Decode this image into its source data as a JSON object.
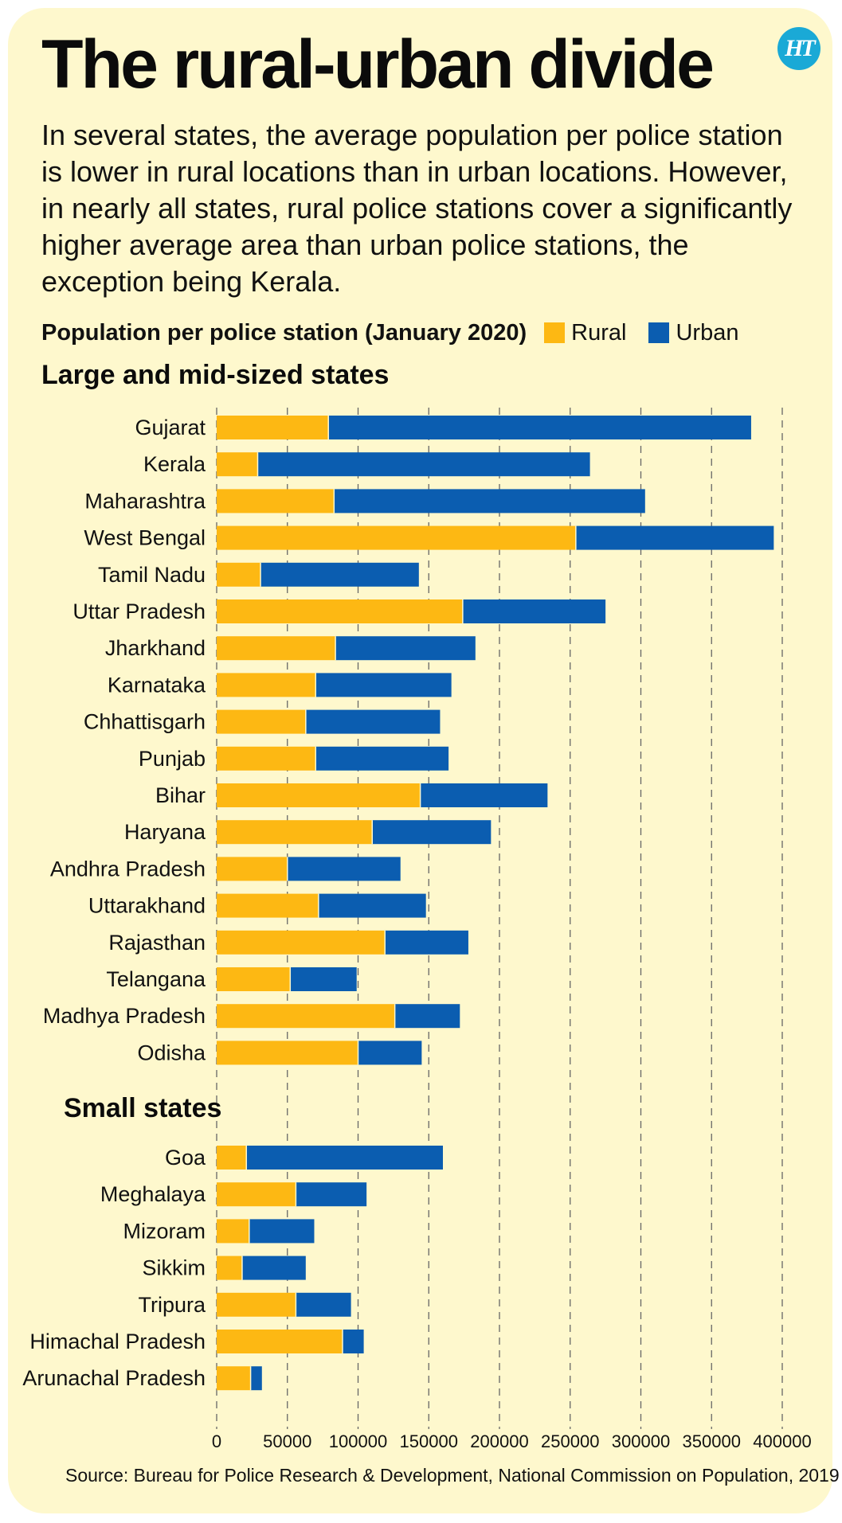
{
  "title": "The rural-urban divide",
  "logo_text": "HT",
  "intro": "In several states, the average population per police station is lower in rural locations than in urban locations. However, in nearly all states, rural police stations cover a significantly higher average area than urban police stations, the exception being Kerala.",
  "legend": {
    "title": "Population per police station (January 2020)",
    "rural": "Rural",
    "urban": "Urban"
  },
  "colors": {
    "rural": "#fdb813",
    "urban": "#0b5db0",
    "gridline": "#666666",
    "background": "#fef8cd"
  },
  "source": "Source: Bureau for Police Research & Development, National Commission on Population, 2019",
  "chart_data": {
    "type": "bar",
    "orientation": "horizontal",
    "stacked": true,
    "xlim": [
      0,
      400000
    ],
    "xticks": [
      0,
      50000,
      100000,
      150000,
      200000,
      250000,
      300000,
      350000,
      400000
    ],
    "legend_position": "top",
    "grid": "vertical dashed",
    "groups": [
      {
        "name": "Large and mid-sized states",
        "categories": [
          "Gujarat",
          "Kerala",
          "Maharashtra",
          "West Bengal",
          "Tamil Nadu",
          "Uttar Pradesh",
          "Jharkhand",
          "Karnataka",
          "Chhattisgarh",
          "Punjab",
          "Bihar",
          "Haryana",
          "Andhra Pradesh",
          "Uttarakhand",
          "Rajasthan",
          "Telangana",
          "Madhya Pradesh",
          "Odisha"
        ],
        "series": [
          {
            "name": "Rural",
            "values": [
              79000,
              29000,
              83000,
              254000,
              31000,
              174000,
              84000,
              70000,
              63000,
              70000,
              144000,
              110000,
              50000,
              72000,
              119000,
              52000,
              126000,
              100000
            ]
          },
          {
            "name": "Urban",
            "values": [
              299000,
              235000,
              220000,
              140000,
              112000,
              101000,
              99000,
              96000,
              95000,
              94000,
              90000,
              84000,
              80000,
              76000,
              59000,
              47000,
              46000,
              45000
            ]
          }
        ]
      },
      {
        "name": "Small states",
        "categories": [
          "Goa",
          "Meghalaya",
          "Mizoram",
          "Sikkim",
          "Tripura",
          "Himachal Pradesh",
          "Arunachal Pradesh"
        ],
        "series": [
          {
            "name": "Rural",
            "values": [
              21000,
              56000,
              23000,
              18000,
              56000,
              89000,
              24000
            ]
          },
          {
            "name": "Urban",
            "values": [
              139000,
              50000,
              46000,
              45000,
              39000,
              15000,
              8000
            ]
          }
        ]
      }
    ]
  }
}
